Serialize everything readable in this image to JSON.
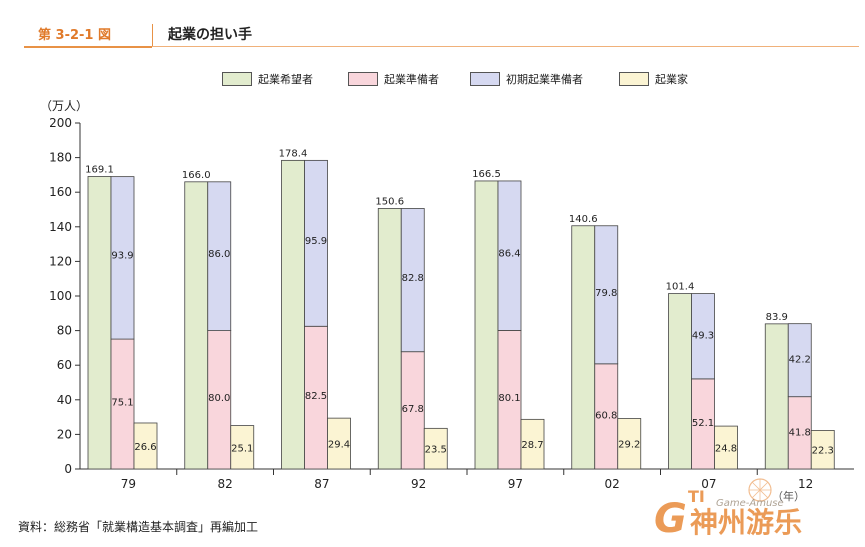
{
  "header": {
    "figure_label": "第 3-2-1 図",
    "title": "起業の担い手"
  },
  "legend": [
    {
      "label": "起業希望者",
      "color": "#e2ecce"
    },
    {
      "label": "起業準備者",
      "color": "#f9d6dc"
    },
    {
      "label": "初期起業準備者",
      "color": "#d6d9f1"
    },
    {
      "label": "起業家",
      "color": "#fbf4d3"
    }
  ],
  "unit_label": "（万人）",
  "year_label": "（年）",
  "source": "資料：総務省「就業構造基本調査」再編加工",
  "watermark": {
    "brand": "神州游乐",
    "small": "Game-Amuse",
    "logo": "GTI"
  },
  "chart_data": {
    "type": "bar",
    "title": "起業の担い手",
    "ylabel": "（万人）",
    "xlabel": "（年）",
    "ylim": [
      0,
      200
    ],
    "yticks": [
      0,
      20,
      40,
      60,
      80,
      100,
      120,
      140,
      160,
      180,
      200
    ],
    "grid": false,
    "legend_position": "top",
    "categories": [
      "79",
      "82",
      "87",
      "92",
      "97",
      "02",
      "07",
      "12"
    ],
    "series": [
      {
        "name": "起業希望者",
        "values": [
          169.1,
          166.0,
          178.4,
          150.6,
          166.5,
          140.6,
          101.4,
          83.9
        ],
        "labels": [
          "169.1",
          "166.0",
          "178.4",
          "150.6",
          "166.5",
          "140.6",
          "101.4",
          "83.9"
        ]
      },
      {
        "name": "起業準備者",
        "values": [
          75.1,
          80.0,
          82.5,
          67.8,
          80.1,
          60.8,
          52.1,
          41.8
        ],
        "labels": [
          "75.1",
          "80.0",
          "82.5",
          "67.8",
          "80.1",
          "60.8",
          "52.1",
          "41.8"
        ]
      },
      {
        "name": "初期起業準備者",
        "values": [
          93.9,
          86.0,
          95.9,
          82.8,
          86.4,
          79.8,
          49.3,
          42.2
        ],
        "labels": [
          "93.9",
          "86.0",
          "95.9",
          "82.8",
          "86.4",
          "79.8",
          "49.3",
          "42.2"
        ]
      },
      {
        "name": "起業家",
        "values": [
          26.6,
          25.1,
          29.4,
          23.5,
          28.7,
          29.2,
          24.8,
          22.3
        ],
        "labels": [
          "26.6",
          "25.1",
          "29.4",
          "23.5",
          "28.7",
          "29.2",
          "24.8",
          "22.3"
        ]
      }
    ]
  }
}
